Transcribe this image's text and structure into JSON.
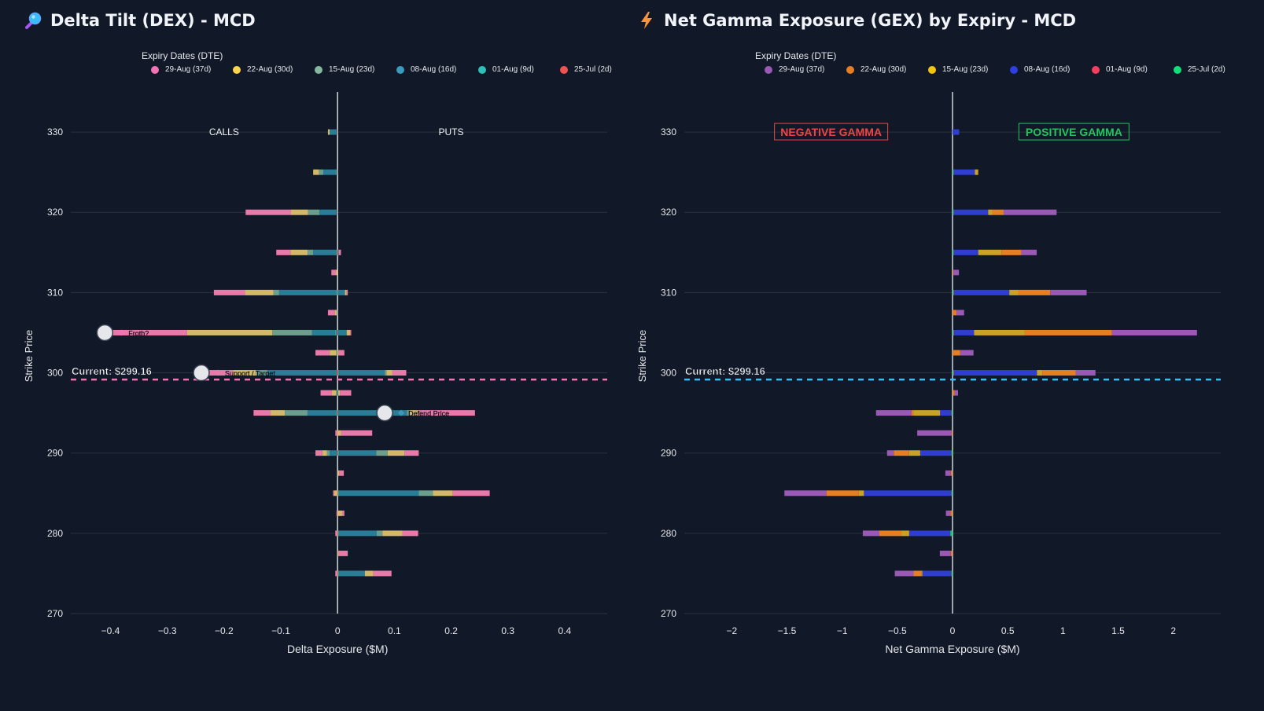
{
  "chart_data": [
    {
      "type": "bar",
      "orientation": "horizontal-stacked",
      "title": "Delta Tilt (DEX) - MCD",
      "xlabel": "Delta Exposure ($M)",
      "ylabel": "Strike Price",
      "xlim": [
        -0.47,
        0.475
      ],
      "ylim": [
        270,
        335
      ],
      "x_ticks": [
        -0.4,
        -0.3,
        -0.2,
        -0.1,
        0,
        0.1,
        0.2,
        0.3,
        0.4
      ],
      "x_tick_labels": [
        "−0.4",
        "−0.3",
        "−0.2",
        "−0.1",
        "0",
        "0.1",
        "0.2",
        "0.3",
        "0.4"
      ],
      "y_ticks": [
        270,
        280,
        290,
        300,
        310,
        320,
        330
      ],
      "legend_title": "Expiry Dates (DTE)",
      "side_labels": {
        "left": "CALLS",
        "right": "PUTS"
      },
      "current_price": 299.16,
      "current_label": "Current: $299.16",
      "series": [
        {
          "name": "29-Aug (37d)",
          "color": "#f472b6",
          "bar_color": "#e879a8"
        },
        {
          "name": "22-Aug (30d)",
          "color": "#fcd34d",
          "bar_color": "#d4b86a"
        },
        {
          "name": "15-Aug (23d)",
          "color": "#86b8a0",
          "bar_color": "#6b9e8d"
        },
        {
          "name": "08-Aug (16d)",
          "color": "#3b9bbf",
          "bar_color": "#2a7d96"
        },
        {
          "name": "01-Aug (9d)",
          "color": "#2dc0b8",
          "bar_color": "#2a9d98"
        },
        {
          "name": "25-Jul (2d)",
          "color": "#f05252",
          "bar_color": "#b85056"
        }
      ],
      "stack_order": [
        "25-Jul (2d)",
        "01-Aug (9d)",
        "08-Aug (16d)",
        "15-Aug (23d)",
        "22-Aug (30d)",
        "29-Aug (37d)"
      ],
      "strikes": [
        {
          "strike": 330,
          "neg": [
            0,
            0.003,
            0,
            0.012,
            0.001,
            0.001
          ],
          "pos": [
            0,
            0,
            0,
            0,
            0,
            0
          ]
        },
        {
          "strike": 325,
          "neg": [
            0,
            0.01,
            0.008,
            0.022,
            0.002,
            0.001
          ],
          "pos": [
            0,
            0,
            0,
            0,
            0,
            0
          ]
        },
        {
          "strike": 320,
          "neg": [
            0.08,
            0.03,
            0.02,
            0.03,
            0.001,
            0.001
          ],
          "pos": [
            0,
            0,
            0,
            0,
            0,
            0
          ]
        },
        {
          "strike": 315,
          "neg": [
            0.025,
            0.03,
            0.01,
            0.04,
            0.002,
            0.001
          ],
          "pos": [
            0.004,
            0,
            0,
            0,
            0.001,
            0.001
          ]
        },
        {
          "strike": 312.5,
          "neg": [
            0.008,
            0.003,
            0,
            0,
            0,
            0
          ],
          "pos": [
            0,
            0,
            0,
            0,
            0,
            0
          ]
        },
        {
          "strike": 310,
          "neg": [
            0.055,
            0.05,
            0.01,
            0.1,
            0.002,
            0.001
          ],
          "pos": [
            0.002,
            0.003,
            0,
            0.012,
            0.001,
            0
          ],
          "extra": []
        },
        {
          "strike": 307.5,
          "neg": [
            0.012,
            0.004,
            0,
            0.001,
            0,
            0
          ],
          "pos": [
            0,
            0,
            0,
            0,
            0,
            0
          ]
        },
        {
          "strike": 305,
          "neg": [
            0.135,
            0.15,
            0.07,
            0.04,
            0.003,
            0.002
          ],
          "pos": [
            0.002,
            0.006,
            0,
            0.016,
            0,
            0
          ]
        },
        {
          "strike": 302.5,
          "neg": [
            0.025,
            0.012,
            0.002,
            0,
            0,
            0
          ],
          "pos": [
            0.01,
            0.002,
            0,
            0,
            0,
            0
          ]
        },
        {
          "strike": 300,
          "neg": [
            0.055,
            0.04,
            0.02,
            0.12,
            0.002,
            0.002
          ],
          "pos": [
            0.025,
            0.01,
            0.003,
            0.08,
            0.002,
            0.001
          ]
        },
        {
          "strike": 297.5,
          "neg": [
            0.02,
            0.008,
            0,
            0.002,
            0,
            0
          ],
          "pos": [
            0.02,
            0.003,
            0,
            0.001,
            0,
            0
          ]
        },
        {
          "strike": 295,
          "neg": [
            0.03,
            0.025,
            0.04,
            0.05,
            0.002,
            0.001
          ],
          "pos": [
            0.1,
            0.015,
            0.005,
            0.12,
            0.001,
            0.001
          ]
        },
        {
          "strike": 292.5,
          "neg": [
            0.004,
            0,
            0,
            0,
            0,
            0
          ],
          "pos": [
            0.055,
            0.006,
            0,
            0,
            0,
            0
          ]
        },
        {
          "strike": 290,
          "neg": [
            0.012,
            0.008,
            0.005,
            0.012,
            0.001,
            0.001
          ],
          "pos": [
            0.025,
            0.03,
            0.02,
            0.065,
            0.002,
            0.001
          ]
        },
        {
          "strike": 287.5,
          "neg": [
            0,
            0,
            0,
            0,
            0,
            0
          ],
          "pos": [
            0.008,
            0.003,
            0,
            0,
            0,
            0
          ]
        },
        {
          "strike": 285,
          "neg": [
            0.002,
            0.006,
            0,
            0,
            0,
            0
          ],
          "pos": [
            0.065,
            0.035,
            0.025,
            0.14,
            0.002,
            0.001
          ]
        },
        {
          "strike": 282.5,
          "neg": [
            0.002,
            0,
            0,
            0,
            0,
            0
          ],
          "pos": [
            0.004,
            0.008,
            0,
            0,
            0,
            0
          ]
        },
        {
          "strike": 280,
          "neg": [
            0.003,
            0.001,
            0,
            0,
            0,
            0
          ],
          "pos": [
            0.028,
            0.035,
            0.01,
            0.066,
            0.002,
            0.001
          ]
        },
        {
          "strike": 277.5,
          "neg": [
            0,
            0,
            0,
            0,
            0,
            0
          ],
          "pos": [
            0.016,
            0.002,
            0,
            0,
            0,
            0
          ]
        },
        {
          "strike": 275,
          "neg": [
            0.003,
            0.001,
            0,
            0,
            0,
            0
          ],
          "pos": [
            0.032,
            0.015,
            0,
            0.045,
            0.002,
            0.001
          ]
        }
      ],
      "annotations": [
        {
          "strike": 305,
          "x": -0.41,
          "label": "Froth?",
          "marker_color": "#f472b6"
        },
        {
          "strike": 300,
          "x": -0.24,
          "label": "Support / Target",
          "marker_color": "#e879a8"
        },
        {
          "strike": 295,
          "x": 0.083,
          "label": "Defend Price",
          "marker_color": "#3b9bbf"
        }
      ]
    },
    {
      "type": "bar",
      "orientation": "horizontal-stacked",
      "title": "Net Gamma Exposure (GEX) by Expiry - MCD",
      "xlabel": "Net Gamma Exposure ($M)",
      "ylabel": "Strike Price",
      "xlim": [
        -2.43,
        2.43
      ],
      "ylim": [
        270,
        335
      ],
      "x_ticks": [
        -2,
        -1.5,
        -1,
        -0.5,
        0,
        0.5,
        1,
        1.5,
        2
      ],
      "x_tick_labels": [
        "−2",
        "−1.5",
        "−1",
        "−0.5",
        "0",
        "0.5",
        "1",
        "1.5",
        "2"
      ],
      "y_ticks": [
        270,
        280,
        290,
        300,
        310,
        320,
        330
      ],
      "legend_title": "Expiry Dates (DTE)",
      "side_labels": {
        "left": "NEGATIVE GAMMA",
        "right": "POSITIVE GAMMA"
      },
      "current_price": 299.16,
      "current_label": "Current: $299.16",
      "series": [
        {
          "name": "29-Aug (37d)",
          "color": "#9b59b6",
          "bar_color": "#9b59b6"
        },
        {
          "name": "22-Aug (30d)",
          "color": "#e67e22",
          "bar_color": "#e67e22"
        },
        {
          "name": "15-Aug (23d)",
          "color": "#f1c40f",
          "bar_color": "#c9a227"
        },
        {
          "name": "08-Aug (16d)",
          "color": "#2f3ee0",
          "bar_color": "#2f3ed0"
        },
        {
          "name": "01-Aug (9d)",
          "color": "#f43f5e",
          "bar_color": "#d63c55"
        },
        {
          "name": "25-Jul (2d)",
          "color": "#10e07a",
          "bar_color": "#10c877"
        }
      ],
      "stack_order": [
        "25-Jul (2d)",
        "01-Aug (9d)",
        "08-Aug (16d)",
        "15-Aug (23d)",
        "22-Aug (30d)",
        "29-Aug (37d)"
      ],
      "strikes": [
        {
          "strike": 330,
          "values": [
            0,
            0,
            0,
            0.06,
            0,
            0
          ]
        },
        {
          "strike": 325,
          "values": [
            0,
            0,
            0.03,
            0.19,
            0.003,
            0.01
          ]
        },
        {
          "strike": 320,
          "values": [
            0.48,
            0.1,
            0.04,
            0.31,
            0.003,
            0.01
          ]
        },
        {
          "strike": 315,
          "values": [
            0.14,
            0.18,
            0.21,
            0.22,
            0.003,
            0.01
          ]
        },
        {
          "strike": 312.5,
          "values": [
            0.05,
            0.008,
            0,
            0,
            0,
            0
          ]
        },
        {
          "strike": 310,
          "values": [
            0.33,
            0.29,
            0.08,
            0.5,
            0.005,
            0.01
          ]
        },
        {
          "strike": 307.5,
          "values": [
            0.07,
            0.035,
            0,
            0,
            0,
            0
          ]
        },
        {
          "strike": 305,
          "values": [
            0.77,
            0.79,
            0.46,
            0.18,
            0.005,
            0.01
          ]
        },
        {
          "strike": 302.5,
          "values": [
            0.12,
            0.07,
            0,
            0,
            0,
            0
          ]
        },
        {
          "strike": 300,
          "values": [
            0.18,
            0.3,
            0.05,
            0.75,
            0.005,
            0.01
          ]
        },
        {
          "strike": 297.5,
          "values": [
            0.03,
            0.02,
            0,
            0,
            0,
            0
          ]
        },
        {
          "strike": 295,
          "values": [
            -0.32,
            -0.02,
            -0.24,
            -0.1,
            -0.003,
            -0.01
          ]
        },
        {
          "strike": 292.5,
          "values": [
            -0.31,
            -0.01,
            0,
            0,
            0,
            0
          ]
        },
        {
          "strike": 290,
          "values": [
            -0.06,
            -0.14,
            -0.1,
            -0.28,
            -0.003,
            -0.01
          ]
        },
        {
          "strike": 287.5,
          "values": [
            -0.05,
            -0.015,
            0,
            0,
            0,
            0
          ]
        },
        {
          "strike": 285,
          "values": [
            -0.38,
            -0.29,
            -0.05,
            -0.79,
            -0.003,
            -0.01
          ]
        },
        {
          "strike": 282.5,
          "values": [
            -0.04,
            -0.02,
            0,
            0,
            0,
            0
          ]
        },
        {
          "strike": 280,
          "values": [
            -0.15,
            -0.2,
            -0.07,
            -0.37,
            -0.003,
            -0.02
          ]
        },
        {
          "strike": 277.5,
          "values": [
            -0.1,
            -0.015,
            0,
            0,
            0,
            0
          ]
        },
        {
          "strike": 275,
          "values": [
            -0.17,
            -0.07,
            -0.01,
            -0.26,
            -0.003,
            -0.01
          ]
        }
      ]
    }
  ]
}
